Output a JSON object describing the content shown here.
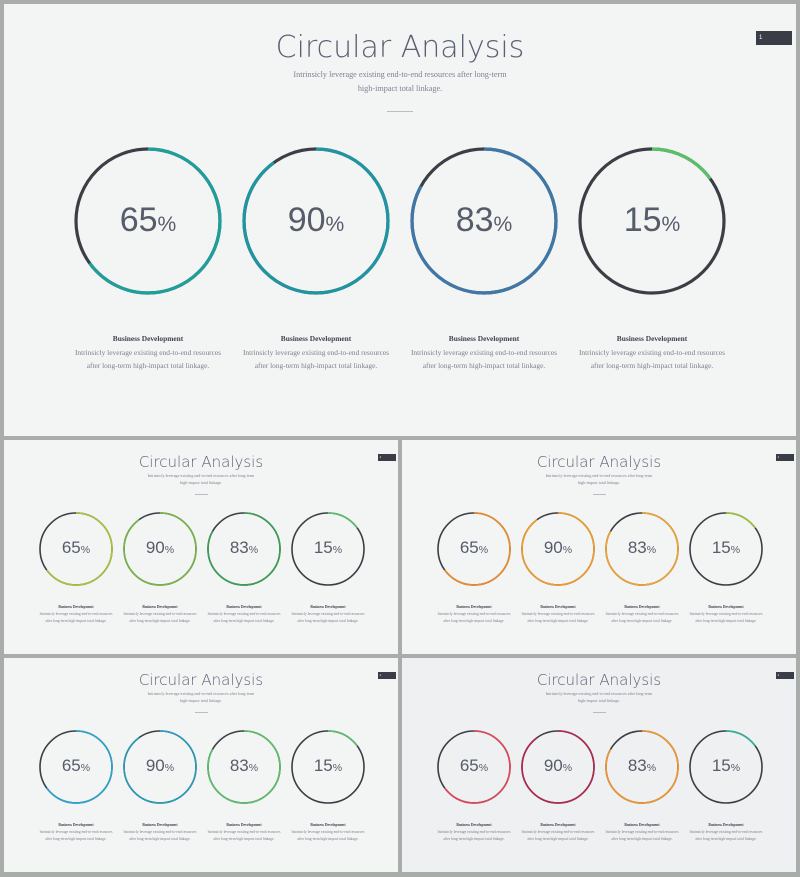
{
  "title": "Circular Analysis",
  "subtitle": "Intrinsicly leverage existing end-to-end resources after long-term high-impact total linkage.",
  "badge_text": "1",
  "item_title": "Business Development",
  "item_text": "Intrinsicly leverage existing end-to-end resources after long-term high-impact total linkage.",
  "track_color": "#3b3e45",
  "slides": [
    {
      "rings": [
        {
          "value": 65,
          "color": "#1f9e9a"
        },
        {
          "value": 90,
          "color": "#1f95a2"
        },
        {
          "value": 83,
          "color": "#3f78a6"
        },
        {
          "value": 15,
          "color": "#5bbf6a"
        }
      ]
    },
    {
      "rings": [
        {
          "value": 65,
          "color": "#a6c43a"
        },
        {
          "value": 90,
          "color": "#7ab545"
        },
        {
          "value": 83,
          "color": "#3d9e55"
        },
        {
          "value": 15,
          "color": "#5bbf6a"
        }
      ]
    },
    {
      "rings": [
        {
          "value": 65,
          "color": "#ef8a2a"
        },
        {
          "value": 90,
          "color": "#f29b28"
        },
        {
          "value": 83,
          "color": "#f0a332"
        },
        {
          "value": 15,
          "color": "#9cc43a"
        }
      ]
    },
    {
      "rings": [
        {
          "value": 65,
          "color": "#2aa4cf"
        },
        {
          "value": 90,
          "color": "#2a9bbb"
        },
        {
          "value": 83,
          "color": "#5bbf6a"
        },
        {
          "value": 15,
          "color": "#5bbf6a"
        }
      ]
    },
    {
      "rings": [
        {
          "value": 65,
          "color": "#e2465a"
        },
        {
          "value": 90,
          "color": "#b0284e"
        },
        {
          "value": 83,
          "color": "#f0962f"
        },
        {
          "value": 15,
          "color": "#2fb49a"
        }
      ]
    }
  ]
}
